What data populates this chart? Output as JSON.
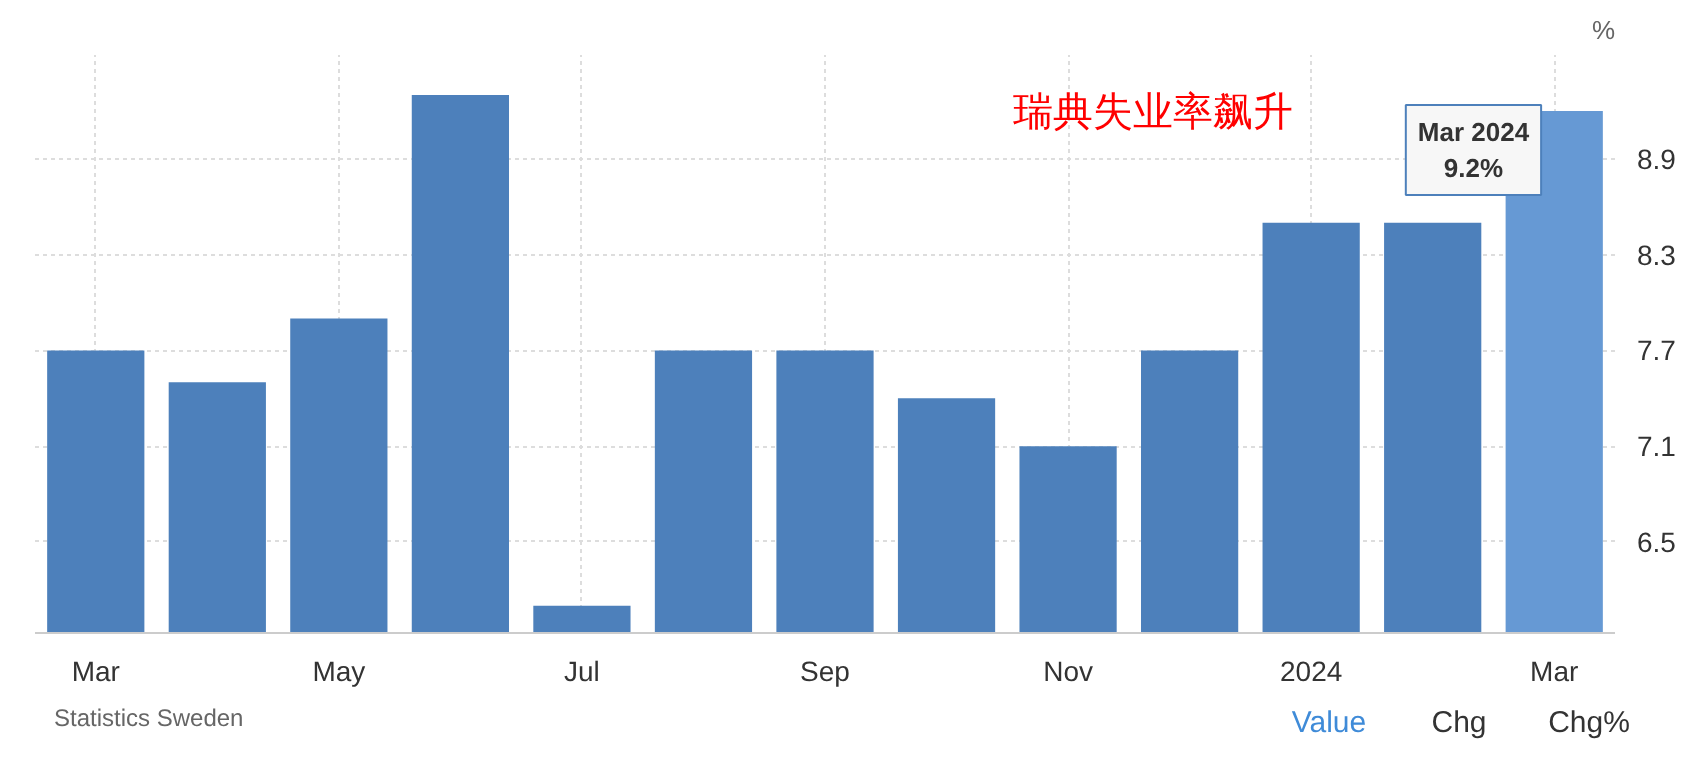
{
  "chart_data": {
    "type": "bar",
    "title": "瑞典失业率飙升",
    "ylabel": "%",
    "categories": [
      "Mar",
      null,
      "May",
      null,
      "Jul",
      null,
      "Sep",
      null,
      "Nov",
      null,
      "2024",
      null,
      "Mar"
    ],
    "values": [
      7.7,
      7.5,
      7.9,
      9.3,
      6.1,
      7.7,
      7.7,
      7.4,
      7.1,
      7.7,
      8.5,
      8.5,
      9.2
    ],
    "colors": [
      "#4d80bb",
      "#4d80bb",
      "#4d80bb",
      "#4d80bb",
      "#4d80bb",
      "#4d80bb",
      "#4d80bb",
      "#4d80bb",
      "#4d80bb",
      "#4d80bb",
      "#4d80bb",
      "#4d80bb",
      "#6699d4"
    ],
    "ylim": [
      5.93,
      9.55
    ],
    "yticks": [
      6.5,
      7.1,
      7.7,
      8.3,
      8.9
    ],
    "grid": true,
    "annotations": [
      "Statistics Sweden",
      "Value",
      "Chg",
      "Chg%",
      "Mar 2024",
      "9.2%"
    ]
  }
}
